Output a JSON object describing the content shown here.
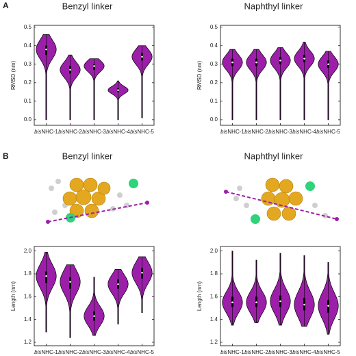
{
  "panel_labels": [
    "A",
    "B"
  ],
  "chart_data": [
    {
      "type": "violin",
      "title": "Benzyl linker",
      "y_label": "RMSD (nm)",
      "color": "#9b1fa8",
      "categories": [
        "bisNHC-1",
        "bisNHC-2",
        "bisNHC-3",
        "bisNHC-4",
        "bisNHC-5"
      ],
      "medians": [
        0.38,
        0.27,
        0.29,
        0.16,
        0.34
      ],
      "q1": [
        0.35,
        0.25,
        0.27,
        0.15,
        0.32
      ],
      "q3": [
        0.4,
        0.29,
        0.3,
        0.17,
        0.36
      ],
      "mins": [
        0,
        0,
        0,
        0,
        0.01
      ],
      "maxs": [
        0.46,
        0.35,
        0.33,
        0.21,
        0.4
      ],
      "ylim": [
        -0.03,
        0.51
      ],
      "yticks": [
        {
          "value": 0,
          "label": "0.0"
        },
        0.1,
        0.2,
        0.3,
        0.4,
        0.5
      ]
    },
    {
      "type": "violin",
      "title": "Naphthyl linker",
      "y_label": "RMSD (nm)",
      "color": "#9b1fa8",
      "categories": [
        "bisNHC-1",
        "bisNHC-2",
        "bisNHC-3",
        "bisNHC-4",
        "bisNHC-5"
      ],
      "medians": [
        0.31,
        0.31,
        0.32,
        0.33,
        0.3
      ],
      "q1": [
        0.29,
        0.29,
        0.3,
        0.31,
        0.28
      ],
      "q3": [
        0.33,
        0.33,
        0.34,
        0.35,
        0.32
      ],
      "mins": [
        0,
        0,
        0,
        0,
        0
      ],
      "maxs": [
        0.38,
        0.38,
        0.39,
        0.42,
        0.37
      ],
      "ylim": [
        -0.03,
        0.51
      ],
      "yticks": [
        {
          "value": 0,
          "label": "0.0"
        },
        0.1,
        0.2,
        0.3,
        0.4,
        0.5
      ]
    },
    {
      "type": "violin",
      "title": "Benzyl linker",
      "y_label": "Length (nm)",
      "color": "#9b1fa8",
      "categories": [
        "bisNHC-1",
        "bisNHC-2",
        "bisNHC-3",
        "bisNHC-4",
        "bisNHC-5"
      ],
      "medians": [
        1.78,
        1.73,
        1.43,
        1.71,
        1.81
      ],
      "q1": [
        1.72,
        1.67,
        1.39,
        1.67,
        1.76
      ],
      "q3": [
        1.82,
        1.77,
        1.47,
        1.75,
        1.85
      ],
      "mins": [
        1.29,
        1.24,
        1.26,
        1.36,
        1.46
      ],
      "maxs": [
        1.99,
        1.88,
        1.77,
        1.84,
        1.95
      ],
      "ylim": [
        1.17,
        2.04
      ],
      "yticks": [
        1.2,
        1.4,
        1.6,
        1.8,
        {
          "value": 2,
          "label": "2.0"
        }
      ]
    },
    {
      "type": "violin",
      "title": "Naphthyl linker",
      "y_label": "Length (nm)",
      "color": "#9b1fa8",
      "categories": [
        "bisNHC-1",
        "bisNHC-2",
        "bisNHC-3",
        "bisNHC-4",
        "bisNHC-5"
      ],
      "medians": [
        1.55,
        1.55,
        1.56,
        1.53,
        1.52
      ],
      "q1": [
        1.51,
        1.51,
        1.51,
        1.48,
        1.46
      ],
      "q3": [
        1.6,
        1.6,
        1.61,
        1.59,
        1.57
      ],
      "mins": [
        1.35,
        1.37,
        1.35,
        1.34,
        1.27
      ],
      "maxs": [
        2.0,
        1.92,
        1.98,
        1.96,
        1.9
      ],
      "ylim": [
        1.17,
        2.04
      ],
      "yticks": [
        1.2,
        1.4,
        1.6,
        1.8,
        {
          "value": 2,
          "label": "2.0"
        }
      ]
    }
  ]
}
